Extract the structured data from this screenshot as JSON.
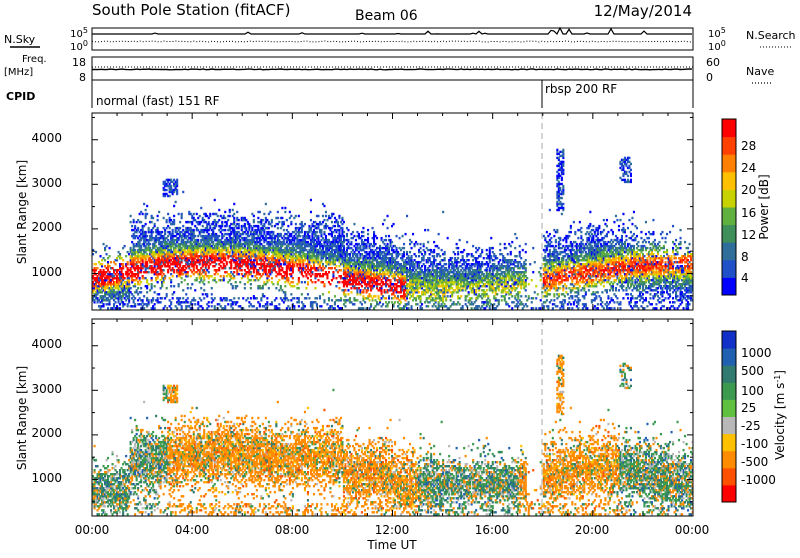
{
  "header": {
    "station": "South Pole Station (fitACF)",
    "beam": "Beam 06",
    "date": "12/May/2014"
  },
  "top_panels": {
    "nsky_label": "N.Sky",
    "nsearch_label": "N.Search",
    "count_ticks": [
      "10^5",
      "10^0"
    ],
    "freq_label": "Freq.",
    "freq_unit": "[MHz]",
    "freq_ticks": [
      "18",
      "8"
    ],
    "nave_label": "Nave",
    "nave_ticks": [
      "60",
      "0"
    ],
    "cpid_label": "CPID",
    "modes": [
      {
        "label": "normal (fast) 151 RF",
        "start_hour": 0
      },
      {
        "label": "rbsp 200 RF",
        "start_hour": 18
      }
    ]
  },
  "chart_data": [
    {
      "type": "heatmap",
      "name": "power-panel",
      "xlabel": "",
      "ylabel": "Slant Range [km]",
      "xlim": [
        0,
        24
      ],
      "ylim": [
        180,
        4600
      ],
      "yticks": [
        "1000",
        "2000",
        "3000",
        "4000"
      ],
      "colorbar": {
        "label": "Power [dB]",
        "ticks": [
          "4",
          "8",
          "12",
          "16",
          "20",
          "24",
          "28"
        ],
        "colors": [
          "#0000ff",
          "#2050c8",
          "#2f6e9a",
          "#3f8f5a",
          "#60b040",
          "#c8d200",
          "#ffc000",
          "#ff8000",
          "#ff4000",
          "#ff0000"
        ]
      },
      "mode_change_hour": 18
    },
    {
      "type": "heatmap",
      "name": "velocity-panel",
      "xlabel": "Time UT",
      "ylabel": "Slant Range [km]",
      "xlim": [
        0,
        24
      ],
      "ylim": [
        180,
        4600
      ],
      "xticks": [
        "00:00",
        "04:00",
        "08:00",
        "12:00",
        "16:00",
        "20:00",
        "00:00"
      ],
      "yticks": [
        "1000",
        "2000",
        "3000",
        "4000"
      ],
      "colorbar": {
        "label": "Velocity [m s^-1]",
        "ticks": [
          "1000",
          "500",
          "100",
          "25",
          "-25",
          "-100",
          "-500",
          "-1000"
        ],
        "colors": [
          "#1030c8",
          "#2060b0",
          "#307a70",
          "#3c9a50",
          "#60c040",
          "#b8b8b8",
          "#ffc000",
          "#ff8c00",
          "#ff5000",
          "#ff0000"
        ]
      },
      "mode_change_hour": 18
    }
  ]
}
